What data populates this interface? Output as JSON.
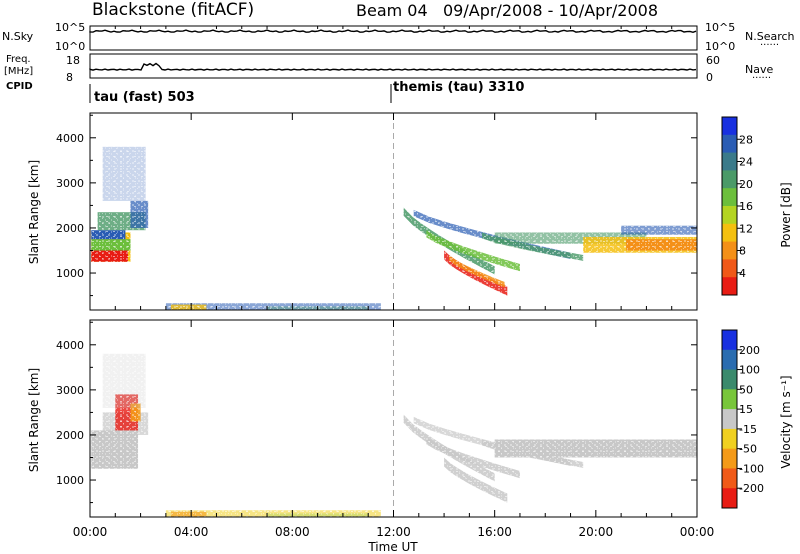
{
  "header": {
    "title": "Blackstone (fitACF)",
    "beam": "Beam 04",
    "date_range": "09/Apr/2008 - 10/Apr/2008"
  },
  "strip_nsky": {
    "left_label": "N.Sky",
    "right_label": "N.Search",
    "right_sub": "......",
    "ticks_left": [
      "10^5",
      "10^0"
    ],
    "ticks_right": [
      "10^5",
      "10^0"
    ],
    "trace_level": 0.78
  },
  "strip_freq": {
    "left_label_1": "Freq.",
    "left_label_2": "[MHz]",
    "ticks_left": [
      "18",
      "8"
    ],
    "ticks_right": [
      "60",
      "0"
    ],
    "right_label": "Nave",
    "right_sub": "......",
    "trace_level": 0.35,
    "spike_time_h": 2.5
  },
  "cpid": {
    "label": "CPID",
    "segments": [
      {
        "text": "tau (fast) 503",
        "start_h": 0
      },
      {
        "text": "themis (tau) 3310",
        "start_h": 12
      }
    ]
  },
  "time_axis": {
    "ticks": [
      "00:00",
      "04:00",
      "08:00",
      "12:00",
      "16:00",
      "20:00",
      "00:00"
    ],
    "tick_hours": [
      0,
      4,
      8,
      12,
      16,
      20,
      24
    ],
    "label": "Time UT",
    "range_h": [
      0,
      24
    ]
  },
  "chart_data": [
    {
      "type": "heatmap",
      "title": "Power",
      "ylabel": "Slant Range [km]",
      "xlabel": "Time UT",
      "ylim": [
        180,
        4550
      ],
      "yticks": [
        "4000",
        "3000",
        "2000",
        "1000"
      ],
      "ytick_values": [
        4000,
        3000,
        2000,
        1000
      ],
      "colorbar": {
        "label": "Power [dB]",
        "ticks": [
          "28",
          "24",
          "20",
          "16",
          "12",
          "8",
          "4"
        ],
        "tick_values": [
          28,
          24,
          20,
          16,
          12,
          8,
          4
        ],
        "range": [
          0,
          32
        ],
        "colors": [
          "#1830e0",
          "#2a5cb4",
          "#3a7a8a",
          "#4a9a68",
          "#6cbf3c",
          "#b4d422",
          "#f4c010",
          "#f49018",
          "#f05818",
          "#e81c14"
        ]
      }
    },
    {
      "type": "heatmap",
      "title": "Velocity",
      "ylabel": "Slant Range [km]",
      "xlabel": "Time UT",
      "ylim": [
        180,
        4550
      ],
      "yticks": [
        "4000",
        "3000",
        "2000",
        "1000"
      ],
      "ytick_values": [
        4000,
        3000,
        2000,
        1000
      ],
      "colorbar": {
        "label": "Velocity [m s⁻¹]",
        "ticks": [
          "200",
          "100",
          "50",
          "15",
          "-15",
          "-50",
          "-100",
          "-200"
        ],
        "tick_values": [
          200,
          100,
          50,
          15,
          -15,
          -50,
          -100,
          -200
        ],
        "colors": [
          "#1830e0",
          "#2a6cb0",
          "#3a8a6c",
          "#78c63a",
          "#c8c8c8",
          "#f0d020",
          "#f49a18",
          "#f05a18",
          "#e81c14"
        ]
      }
    }
  ]
}
